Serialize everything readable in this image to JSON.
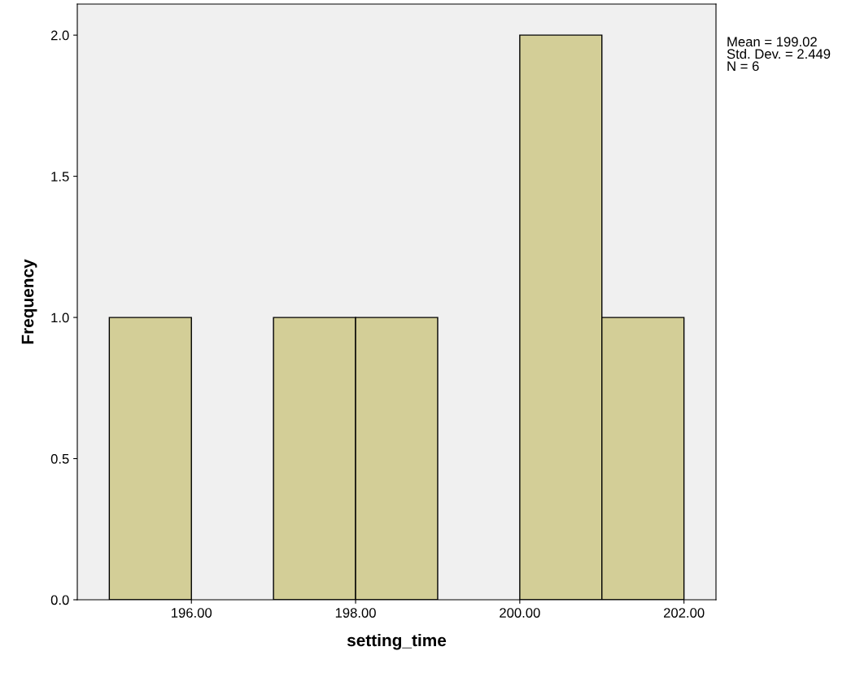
{
  "chart_data": {
    "type": "histogram",
    "xlabel": "setting_time",
    "ylabel": "Frequency",
    "bins": [
      195,
      196,
      197,
      198,
      199,
      200,
      201,
      202
    ],
    "values": [
      1,
      0,
      1,
      1,
      0,
      2,
      1
    ],
    "color": "#d3ce97",
    "xlim": [
      194.61,
      202.39
    ],
    "xticks": [
      {
        "value": 196,
        "label": "196.00"
      },
      {
        "value": 198,
        "label": "198.00"
      },
      {
        "value": 200,
        "label": "200.00"
      },
      {
        "value": 202,
        "label": "202.00"
      }
    ],
    "ylim": [
      0,
      2.11
    ],
    "yticks": [
      {
        "value": 0,
        "label": "0.0"
      },
      {
        "value": 0.5,
        "label": "0.5"
      },
      {
        "value": 1,
        "label": "1.0"
      },
      {
        "value": 1.5,
        "label": "1.5"
      },
      {
        "value": 2,
        "label": "2.0"
      }
    ],
    "annotations": [
      "Mean = 199.02\nStd. Dev. = 2.449\nN = 6"
    ],
    "grid": false
  }
}
